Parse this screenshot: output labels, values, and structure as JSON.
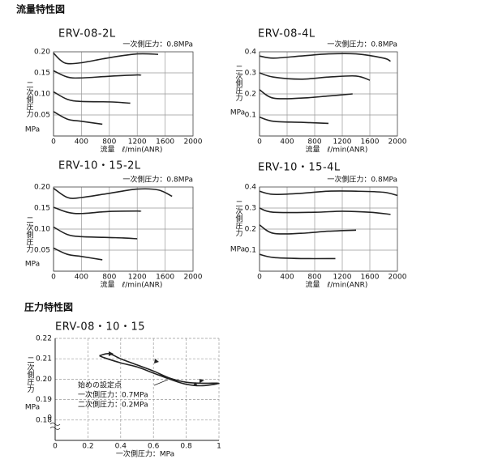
{
  "headings": [
    "流量特性図",
    "圧力特性図"
  ],
  "chart_data": [
    {
      "type": "line",
      "title": "ERV-08-2L",
      "annotation": "一次側圧力：0.8MPa",
      "xlabel": "流量　ℓ/min(ANR)",
      "ylabel": "二次側圧力",
      "yunit": "MPa",
      "xlim": [
        0,
        2000
      ],
      "xticks": [
        0,
        400,
        800,
        1200,
        1600,
        2000
      ],
      "ylim": [
        0,
        0.2
      ],
      "yticks": [
        {
          "value": 0.2,
          "label": "0.20"
        },
        0.15,
        {
          "value": 0.1,
          "label": "0.10"
        },
        0.05
      ],
      "grid": true,
      "grid_dashed": false,
      "series": [
        {
          "color": "#222222",
          "x": [
            0,
            100,
            200,
            400,
            800,
            1200,
            1500
          ],
          "values": [
            0.197,
            0.18,
            0.172,
            0.174,
            0.186,
            0.195,
            0.194
          ]
        },
        {
          "color": "#222222",
          "x": [
            0,
            200,
            400,
            800,
            1200,
            1250
          ],
          "values": [
            0.155,
            0.14,
            0.138,
            0.142,
            0.145,
            0.144
          ]
        },
        {
          "color": "#222222",
          "x": [
            0,
            200,
            400,
            800,
            1100
          ],
          "values": [
            0.105,
            0.087,
            0.082,
            0.081,
            0.078
          ]
        },
        {
          "color": "#222222",
          "x": [
            0,
            200,
            400,
            700
          ],
          "values": [
            0.058,
            0.04,
            0.035,
            0.028
          ]
        }
      ]
    },
    {
      "type": "line",
      "title": "ERV-08-4L",
      "annotation": "一次側圧力：0.8MPa",
      "xlabel": "流量　ℓ/min(ANR)",
      "ylabel": "二次側圧力",
      "yunit": "MPa",
      "xlim": [
        0,
        2000
      ],
      "xticks": [
        0,
        400,
        800,
        1200,
        1600,
        2000
      ],
      "ylim": [
        0,
        0.4
      ],
      "yticks": [
        0.4,
        0.3,
        0.2,
        0.1
      ],
      "grid": true,
      "grid_dashed": false,
      "series": [
        {
          "color": "#222222",
          "x": [
            0,
            200,
            600,
            1000,
            1400,
            1800,
            1900
          ],
          "values": [
            0.38,
            0.37,
            0.38,
            0.39,
            0.39,
            0.37,
            0.355
          ]
        },
        {
          "color": "#222222",
          "x": [
            0,
            200,
            600,
            1000,
            1400,
            1600
          ],
          "values": [
            0.3,
            0.28,
            0.27,
            0.28,
            0.285,
            0.265
          ]
        },
        {
          "color": "#222222",
          "x": [
            0,
            200,
            600,
            1000,
            1350
          ],
          "values": [
            0.22,
            0.18,
            0.18,
            0.19,
            0.2
          ]
        },
        {
          "color": "#222222",
          "x": [
            0,
            200,
            600,
            1000
          ],
          "values": [
            0.09,
            0.07,
            0.065,
            0.06
          ]
        }
      ]
    },
    {
      "type": "line",
      "title": "ERV-10・15-2L",
      "annotation": "一次側圧力：0.8MPa",
      "xlabel": "流量　ℓ/min(ANR)",
      "ylabel": "二次側圧力",
      "yunit": "MPa",
      "xlim": [
        0,
        2000
      ],
      "xticks": [
        0,
        400,
        800,
        1200,
        1600,
        2000
      ],
      "ylim": [
        0,
        0.2
      ],
      "yticks": [
        {
          "value": 0.2,
          "label": "0.20"
        },
        0.15,
        {
          "value": 0.1,
          "label": "0.10"
        },
        0.05
      ],
      "grid": true,
      "grid_dashed": false,
      "series": [
        {
          "color": "#222222",
          "x": [
            0,
            200,
            400,
            800,
            1200,
            1500,
            1700
          ],
          "values": [
            0.197,
            0.175,
            0.175,
            0.185,
            0.195,
            0.193,
            0.178
          ]
        },
        {
          "color": "#222222",
          "x": [
            0,
            200,
            400,
            800,
            1200,
            1250
          ],
          "values": [
            0.152,
            0.14,
            0.137,
            0.142,
            0.143,
            0.142
          ]
        },
        {
          "color": "#222222",
          "x": [
            0,
            200,
            400,
            800,
            1000,
            1200
          ],
          "values": [
            0.105,
            0.087,
            0.082,
            0.08,
            0.079,
            0.077
          ]
        },
        {
          "color": "#222222",
          "x": [
            0,
            200,
            400,
            700
          ],
          "values": [
            0.055,
            0.04,
            0.035,
            0.027
          ]
        }
      ]
    },
    {
      "type": "line",
      "title": "ERV-10・15-4L",
      "annotation": "一次側圧力：0.8MPa",
      "xlabel": "流量　ℓ/min(ANR)",
      "ylabel": "二次側圧力",
      "yunit": "MPa",
      "xlim": [
        0,
        2000
      ],
      "xticks": [
        0,
        400,
        800,
        1200,
        1600,
        2000
      ],
      "ylim": [
        0,
        0.4
      ],
      "yticks": [
        0.4,
        0.3,
        0.2,
        0.1
      ],
      "grid": true,
      "grid_dashed": false,
      "series": [
        {
          "color": "#222222",
          "x": [
            0,
            200,
            600,
            1000,
            1400,
            1800,
            2000
          ],
          "values": [
            0.38,
            0.365,
            0.37,
            0.38,
            0.38,
            0.375,
            0.36
          ]
        },
        {
          "color": "#222222",
          "x": [
            0,
            200,
            800,
            1200,
            1600,
            1900
          ],
          "values": [
            0.3,
            0.28,
            0.28,
            0.285,
            0.28,
            0.27
          ]
        },
        {
          "color": "#222222",
          "x": [
            0,
            200,
            600,
            1000,
            1400
          ],
          "values": [
            0.22,
            0.18,
            0.18,
            0.19,
            0.195
          ]
        },
        {
          "color": "#222222",
          "x": [
            0,
            200,
            600,
            1100
          ],
          "values": [
            0.08,
            0.065,
            0.06,
            0.06
          ]
        }
      ]
    },
    {
      "type": "line",
      "title": "ERV-08・10・15",
      "annotations": [
        "始めの設定点",
        "一次側圧力：0.7MPa",
        "二次側圧力：0.2MPa"
      ],
      "xlabel": "一次側圧力：MPa",
      "ylabel": "二次側圧力",
      "yunit": "MPa",
      "y_break_label": "0",
      "xlim": [
        0,
        1
      ],
      "xticks": [
        0,
        0.2,
        0.4,
        0.6,
        0.8,
        1
      ],
      "ylim": [
        0.17,
        0.22
      ],
      "yticks": [
        0.22,
        0.21,
        {
          "value": 0.2,
          "label": "0.20"
        },
        0.19,
        0.18
      ],
      "grid": true,
      "grid_dashed": true,
      "series": [
        {
          "color": "#222222",
          "x": [
            0.27,
            0.33,
            0.4,
            0.5,
            0.6,
            0.7,
            0.8,
            0.9,
            1.0,
            0.9,
            0.8,
            0.7,
            0.6,
            0.5,
            0.4,
            0.3,
            0.27
          ],
          "values": [
            0.2115,
            0.2125,
            0.21,
            0.207,
            0.204,
            0.2005,
            0.1985,
            0.198,
            0.198,
            0.1968,
            0.1975,
            0.2,
            0.203,
            0.206,
            0.208,
            0.2105,
            0.2115
          ]
        }
      ]
    }
  ]
}
